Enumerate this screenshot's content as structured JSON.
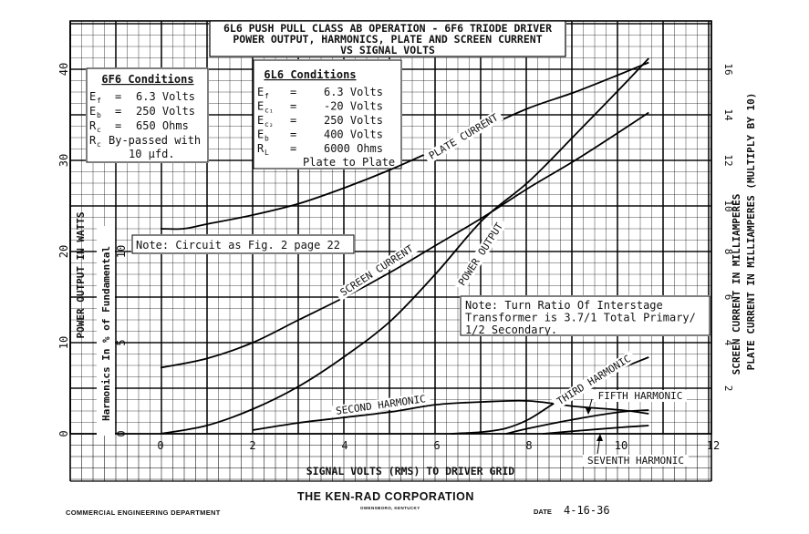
{
  "chart_data": {
    "type": "line",
    "title": "6L6 PUSH PULL CLASS AB OPERATION - 6F6 TRIODE DRIVER",
    "subtitle_1": "POWER OUTPUT, HARMONICS, PLATE AND SCREEN CURRENT",
    "subtitle_2": "VS  SIGNAL VOLTS",
    "xlabel": "SIGNAL VOLTS (RMS) TO DRIVER GRID",
    "xlim": [
      0,
      12
    ],
    "x_ticks": [
      "0",
      "2",
      "4",
      "6",
      "8",
      "10",
      "12"
    ],
    "ylabel_left_outer": "POWER OUTPUT IN WATTS",
    "y_left_outer_lim": [
      0,
      40
    ],
    "y_left_outer_ticks": [
      "0",
      "10",
      "20",
      "30",
      "40"
    ],
    "ylabel_left_inner": "Harmonics In % of Fundamental",
    "y_left_inner_ticks": [
      "0",
      "5",
      "10"
    ],
    "ylabel_right_1": "SCREEN CURRENT IN MILLIAMPERES",
    "ylabel_right_2": "PLATE CURRENT IN MILLIAMPERES (MULTIPLY BY 10)",
    "y_right_lim": [
      0,
      16
    ],
    "y_right_ticks": [
      "2",
      "4",
      "6",
      "8",
      "10",
      "12",
      "14",
      "16"
    ],
    "series": [
      {
        "name": "PLATE CURRENT",
        "axis": "right",
        "x": [
          0,
          0.5,
          1,
          2,
          3,
          4,
          5,
          6,
          7,
          8,
          9,
          10,
          10.6
        ],
        "y": [
          9,
          9,
          9.2,
          9.6,
          10.1,
          10.8,
          11.6,
          12.5,
          13.4,
          14.3,
          15.0,
          15.8,
          16.3
        ]
      },
      {
        "name": "SCREEN CURRENT",
        "axis": "right",
        "x": [
          0,
          1,
          2,
          3,
          4,
          5,
          6,
          7,
          8,
          9,
          10,
          10.6
        ],
        "y": [
          2.9,
          3.3,
          4.0,
          5.0,
          6.0,
          7.1,
          8.3,
          9.5,
          10.8,
          12.0,
          13.3,
          14.1
        ]
      },
      {
        "name": "POWER OUTPUT",
        "axis": "left",
        "x": [
          0,
          1,
          2,
          3,
          4,
          5,
          6,
          7,
          8,
          9,
          10,
          10.6
        ],
        "y": [
          0,
          0.9,
          2.7,
          5.2,
          8.5,
          12.4,
          17.7,
          23.5,
          27.7,
          32.8,
          38.0,
          41.2
        ]
      },
      {
        "name": "SECOND HARMONIC",
        "axis": "harmonics",
        "x": [
          2,
          3,
          4,
          5,
          6,
          7,
          8,
          9,
          10,
          10.6
        ],
        "y": [
          0.2,
          0.6,
          0.9,
          1.2,
          1.6,
          1.75,
          1.8,
          1.5,
          1.3,
          1.1
        ]
      },
      {
        "name": "THIRD HARMONIC",
        "axis": "harmonics",
        "x": [
          6.3,
          7,
          7.5,
          8,
          8.5,
          9,
          9.5,
          10,
          10.6
        ],
        "y": [
          0,
          0.1,
          0.3,
          0.8,
          1.6,
          2.4,
          3.1,
          3.6,
          4.2
        ]
      },
      {
        "name": "FIFTH HARMONIC",
        "axis": "harmonics",
        "x": [
          7.5,
          8,
          9,
          10,
          10.6
        ],
        "y": [
          0,
          0.3,
          0.8,
          1.2,
          1.3
        ]
      },
      {
        "name": "SEVENTH HARMONIC",
        "axis": "harmonics",
        "x": [
          8.3,
          9,
          10,
          10.6
        ],
        "y": [
          0,
          0.15,
          0.35,
          0.45
        ]
      }
    ],
    "conditions_6f6": {
      "title": "6F6 Conditions",
      "rows": [
        {
          "sym": "E",
          "sub": "f",
          "val": "6.3 Volts"
        },
        {
          "sym": "E",
          "sub": "b",
          "val": "250 Volts"
        },
        {
          "sym": "R",
          "sub": "c",
          "val": "650 Ohms"
        }
      ],
      "bypass_1": "By-passed with",
      "bypass_sym": "R",
      "bypass_sub": "c",
      "bypass_2": "10 μfd."
    },
    "conditions_6l6": {
      "title": "6L6 Conditions",
      "rows": [
        {
          "sym": "E",
          "sub": "f",
          "val": "6.3 Volts"
        },
        {
          "sym": "E",
          "sub": "c₁",
          "val": "-20 Volts"
        },
        {
          "sym": "E",
          "sub": "c₂",
          "val": "250 Volts"
        },
        {
          "sym": "E",
          "sub": "b",
          "val": "400 Volts"
        },
        {
          "sym": "R",
          "sub": "L",
          "val": "6000 Ohms"
        }
      ],
      "footer": "Plate to Plate"
    },
    "note_circuit": "Note:  Circuit as Fig. 2 page 22",
    "note_ratio": [
      "Note: Turn Ratio Of Interstage",
      "Transformer is 3.7/1 Total Primary/",
      "1/2 Secondary."
    ],
    "eq_sign": "="
  },
  "footer": {
    "department": "COMMERCIAL ENGINEERING DEPARTMENT",
    "corporation": "THE KEN-RAD CORPORATION",
    "city": "OWENSBORO, KENTUCKY",
    "date_label": "DATE",
    "date_value": "4-16-36"
  }
}
